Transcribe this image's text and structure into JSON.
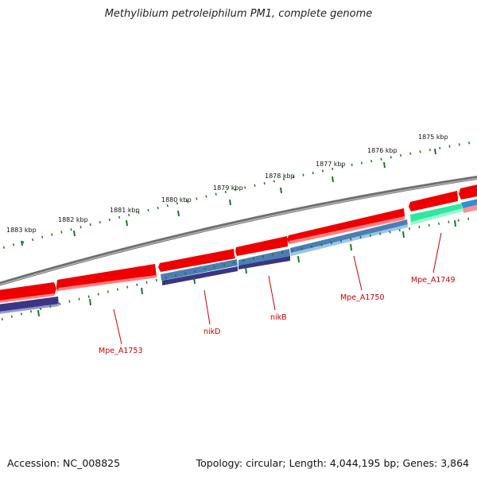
{
  "title": "Methylibium petroleiphilum PM1, complete genome",
  "footer": {
    "accession": "Accession: NC_008825",
    "topology": "Topology: circular; Length: 4,044,195 bp; Genes: 3,864"
  },
  "ruler_labels": [
    "1883 kbp",
    "1882 kbp",
    "1881 kbp",
    "1880 kbp",
    "1879 kbp",
    "1878 kbp",
    "1877 kbp",
    "1876 kbp",
    "1875 kbp"
  ],
  "gene_labels": [
    "Mpe_A1753",
    "nikD",
    "nikB",
    "Mpe_A1750",
    "Mpe_A1749"
  ],
  "colors": {
    "backbone": "#7a7a7a",
    "cds_forward": "#ee0000",
    "blast_blue": "#4a7fb5",
    "blast_purple": "#3b3585",
    "blast_teal": "#2ee8a0",
    "ticks": "#1a7a1a",
    "label_red": "#cc0000"
  }
}
